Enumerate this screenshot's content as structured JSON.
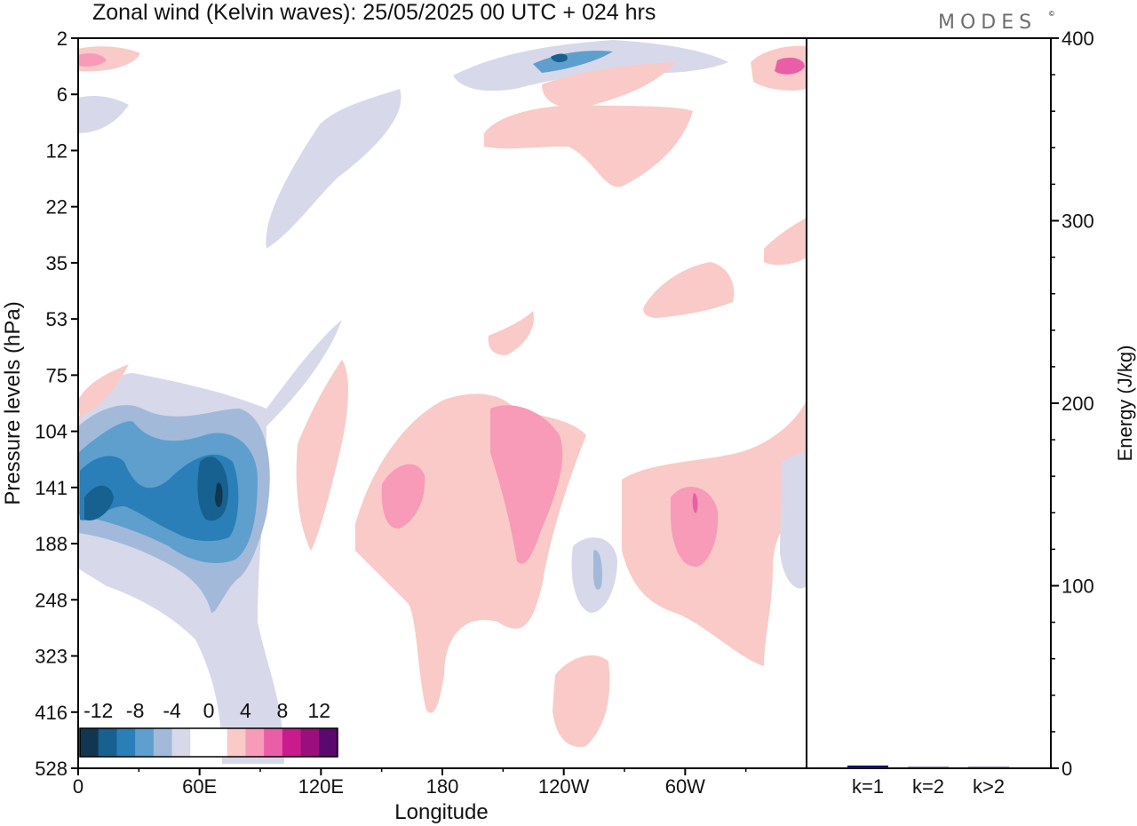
{
  "chart_data": {
    "type": "heatmap",
    "title": "Zonal wind (Kelvin waves):  25/05/2025  00 UTC  + 024 hrs",
    "brand": "MODES",
    "xlabel": "Longitude",
    "ylabel": "Pressure levels (hPa)",
    "x_ticks": [
      "0",
      "60E",
      "120E",
      "180",
      "120W",
      "60W"
    ],
    "x_range_degE": [
      0,
      360
    ],
    "y_ticks": [
      "2",
      "6",
      "12",
      "22",
      "35",
      "53",
      "75",
      "104",
      "141",
      "188",
      "248",
      "323",
      "416",
      "528"
    ],
    "y_axis": "pressure, top 2 hPa to bottom 528 hPa, levels evenly spaced",
    "colorbar": {
      "labels": [
        "-12",
        "-8",
        "-4",
        "0",
        "4",
        "8",
        "12"
      ],
      "colors": [
        "#10374f",
        "#16618f",
        "#2a7fb8",
        "#5e9fcd",
        "#a3b9da",
        "#d7d9ea",
        "#ffffff",
        "#ffffff",
        "#f9cac7",
        "#f79bb8",
        "#ea5ea7",
        "#c81c8e",
        "#9a0f7c",
        "#5a0a6e"
      ]
    },
    "contour_regions": [
      {
        "sign": "negative",
        "level": 2,
        "lon_range": [
          0,
          95
        ],
        "pressure_range": [
          104,
          500
        ],
        "min_value": -14
      },
      {
        "sign": "positive",
        "level": 2,
        "lon_range": [
          160,
          200
        ],
        "pressure_range": [
          104,
          416
        ]
      },
      {
        "sign": "positive",
        "level": 2,
        "lon_range": [
          210,
          245
        ],
        "pressure_range": [
          104,
          220
        ]
      },
      {
        "sign": "positive",
        "level": 2,
        "lon_range": [
          295,
          310
        ],
        "pressure_range": [
          120,
          230
        ]
      },
      {
        "sign": "positive",
        "level": 2,
        "lon_range": [
          190,
          320
        ],
        "pressure_range": [
          6,
          22
        ]
      },
      {
        "sign": "negative",
        "level": 3,
        "lon_range": [
          220,
          280
        ],
        "pressure_range": [
          2,
          6
        ]
      },
      {
        "sign": "positive",
        "level": 3,
        "lon_range": [
          340,
          360
        ],
        "pressure_range": [
          2,
          6
        ]
      },
      {
        "sign": "negative",
        "level": 1,
        "lon_range": [
          345,
          360
        ],
        "pressure_range": [
          104,
          248
        ]
      }
    ],
    "energy_panel": {
      "type": "bar",
      "ylabel": "Energy (J/kg)",
      "ylim": [
        0,
        400
      ],
      "y_ticks": [
        "0",
        "100",
        "200",
        "300",
        "400"
      ],
      "categories": [
        "k=1",
        "k=2",
        "k>2"
      ],
      "values": [
        1.5,
        0.3,
        0.5
      ],
      "bar_color": "#0f0f66"
    }
  }
}
